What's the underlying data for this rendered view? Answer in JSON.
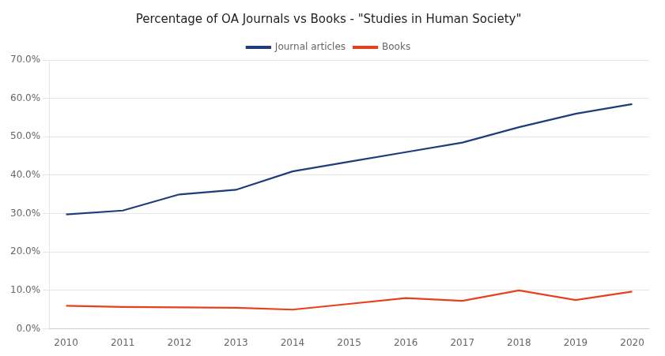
{
  "chart_data": {
    "type": "line",
    "title": "Percentage of OA Journals vs Books - \"Studies in Human Society\"",
    "x": [
      2010,
      2011,
      2012,
      2013,
      2014,
      2015,
      2016,
      2017,
      2018,
      2019,
      2020
    ],
    "series": [
      {
        "name": "Journal articles",
        "color": "#1f3d7a",
        "values": [
          0.298,
          0.308,
          0.35,
          0.362,
          0.41,
          0.435,
          0.46,
          0.485,
          0.525,
          0.56,
          0.585
        ]
      },
      {
        "name": "Books",
        "color": "#e8401c",
        "values": [
          0.06,
          0.057,
          0.056,
          0.055,
          0.05,
          0.065,
          0.08,
          0.073,
          0.1,
          0.075,
          0.097
        ]
      }
    ],
    "xlim": [
      2009.7,
      2020.3
    ],
    "xticks": [
      2010,
      2011,
      2012,
      2013,
      2014,
      2015,
      2016,
      2017,
      2018,
      2019,
      2020
    ],
    "ylim": [
      0.0,
      0.7
    ],
    "yticks": [
      {
        "value": 0.0,
        "label": "0.0%"
      },
      {
        "value": 0.1,
        "label": "10.0%"
      },
      {
        "value": 0.2,
        "label": "20.0%"
      },
      {
        "value": 0.3,
        "label": "30.0%"
      },
      {
        "value": 0.4,
        "label": "40.0%"
      },
      {
        "value": 0.5,
        "label": "50.0%"
      },
      {
        "value": 0.6,
        "label": "60.0%"
      },
      {
        "value": 0.7,
        "label": "70.0%"
      }
    ],
    "grid": true,
    "legend": "top"
  }
}
